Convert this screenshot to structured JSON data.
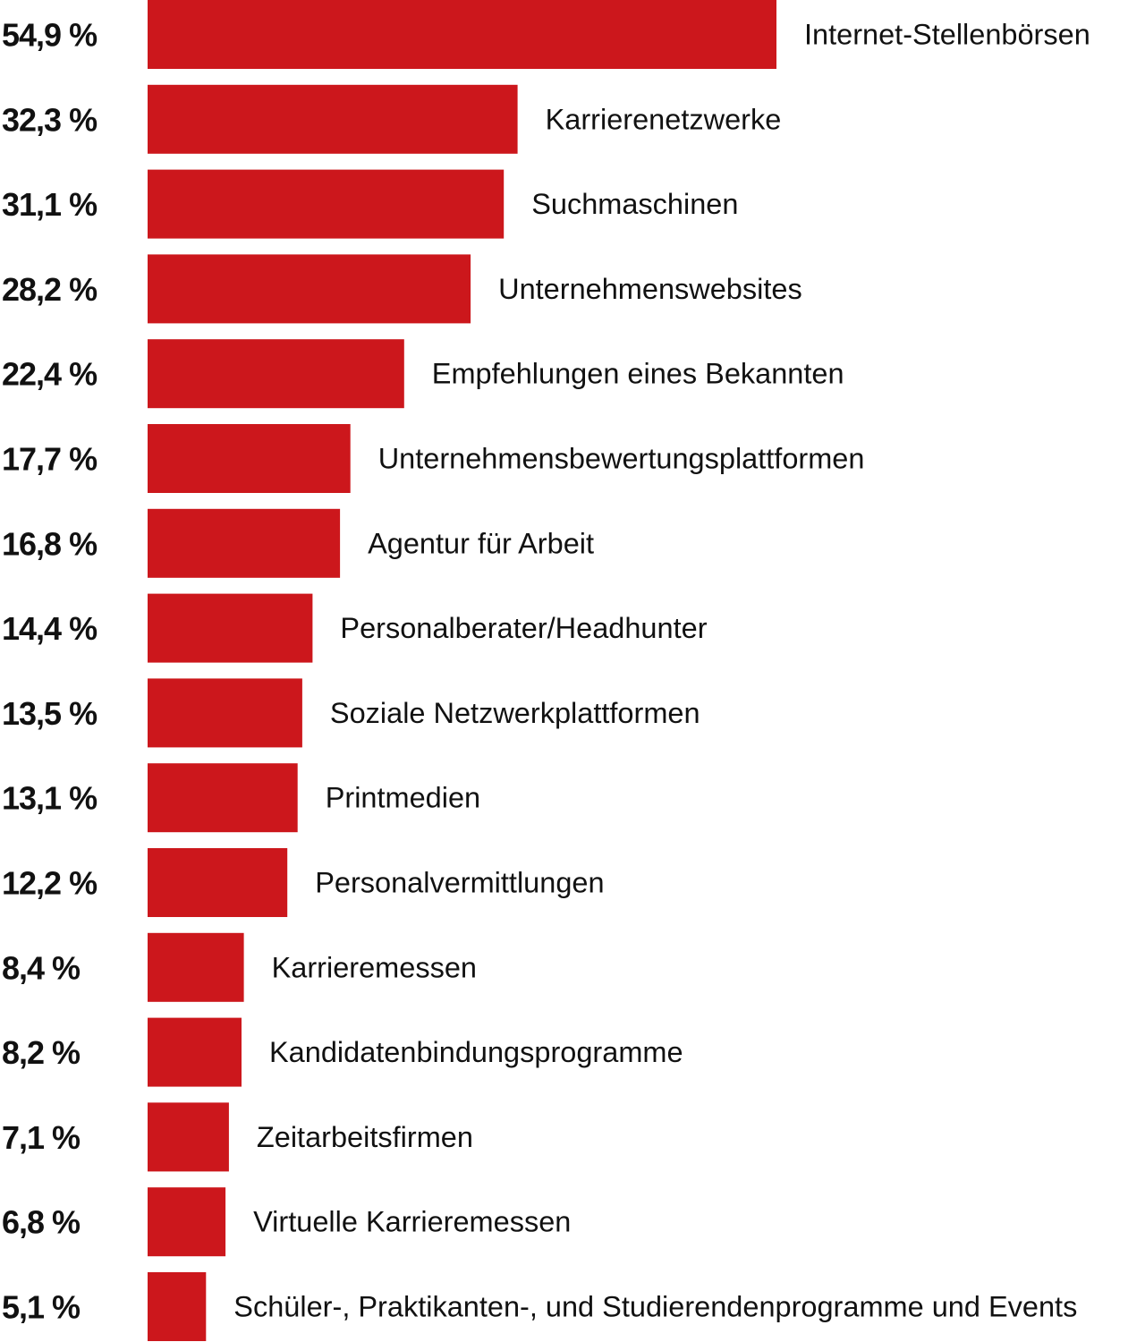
{
  "chart_data": {
    "type": "bar",
    "orientation": "horizontal",
    "title": "",
    "xlabel": "",
    "ylabel": "",
    "unit": "%",
    "bar_color": "#cc171c",
    "grid": false,
    "legend": "none",
    "xlim": [
      0,
      54.9
    ],
    "categories": [
      "Internet-Stellenbörsen",
      "Karrierenetzwerke",
      "Suchmaschinen",
      "Unternehmenswebsites",
      "Empfehlungen eines Bekannten",
      "Unternehmensbewertungsplattformen",
      "Agentur für Arbeit",
      "Personalberater/Headhunter",
      "Soziale Netzwerkplattformen",
      "Printmedien",
      "Personalvermittlungen",
      "Karrieremessen",
      "Kandidatenbindungsprogramme",
      "Zeitarbeitsfirmen",
      "Virtuelle Karrieremessen",
      "Schüler-, Praktikanten-, und Studierendenprogramme und Events"
    ],
    "values": [
      54.9,
      32.3,
      31.1,
      28.2,
      22.4,
      17.7,
      16.8,
      14.4,
      13.5,
      13.1,
      12.2,
      8.4,
      8.2,
      7.1,
      6.8,
      5.1
    ],
    "value_labels": [
      "54,9 %",
      "32,3 %",
      "31,1 %",
      "28,2 %",
      "22,4 %",
      "17,7 %",
      "16,8 %",
      "14,4 %",
      "13,5 %",
      "13,1 %",
      "12,2 %",
      "8,4 %",
      "8,2 %",
      "7,1 %",
      "6,8 %",
      "5,1 %"
    ]
  }
}
